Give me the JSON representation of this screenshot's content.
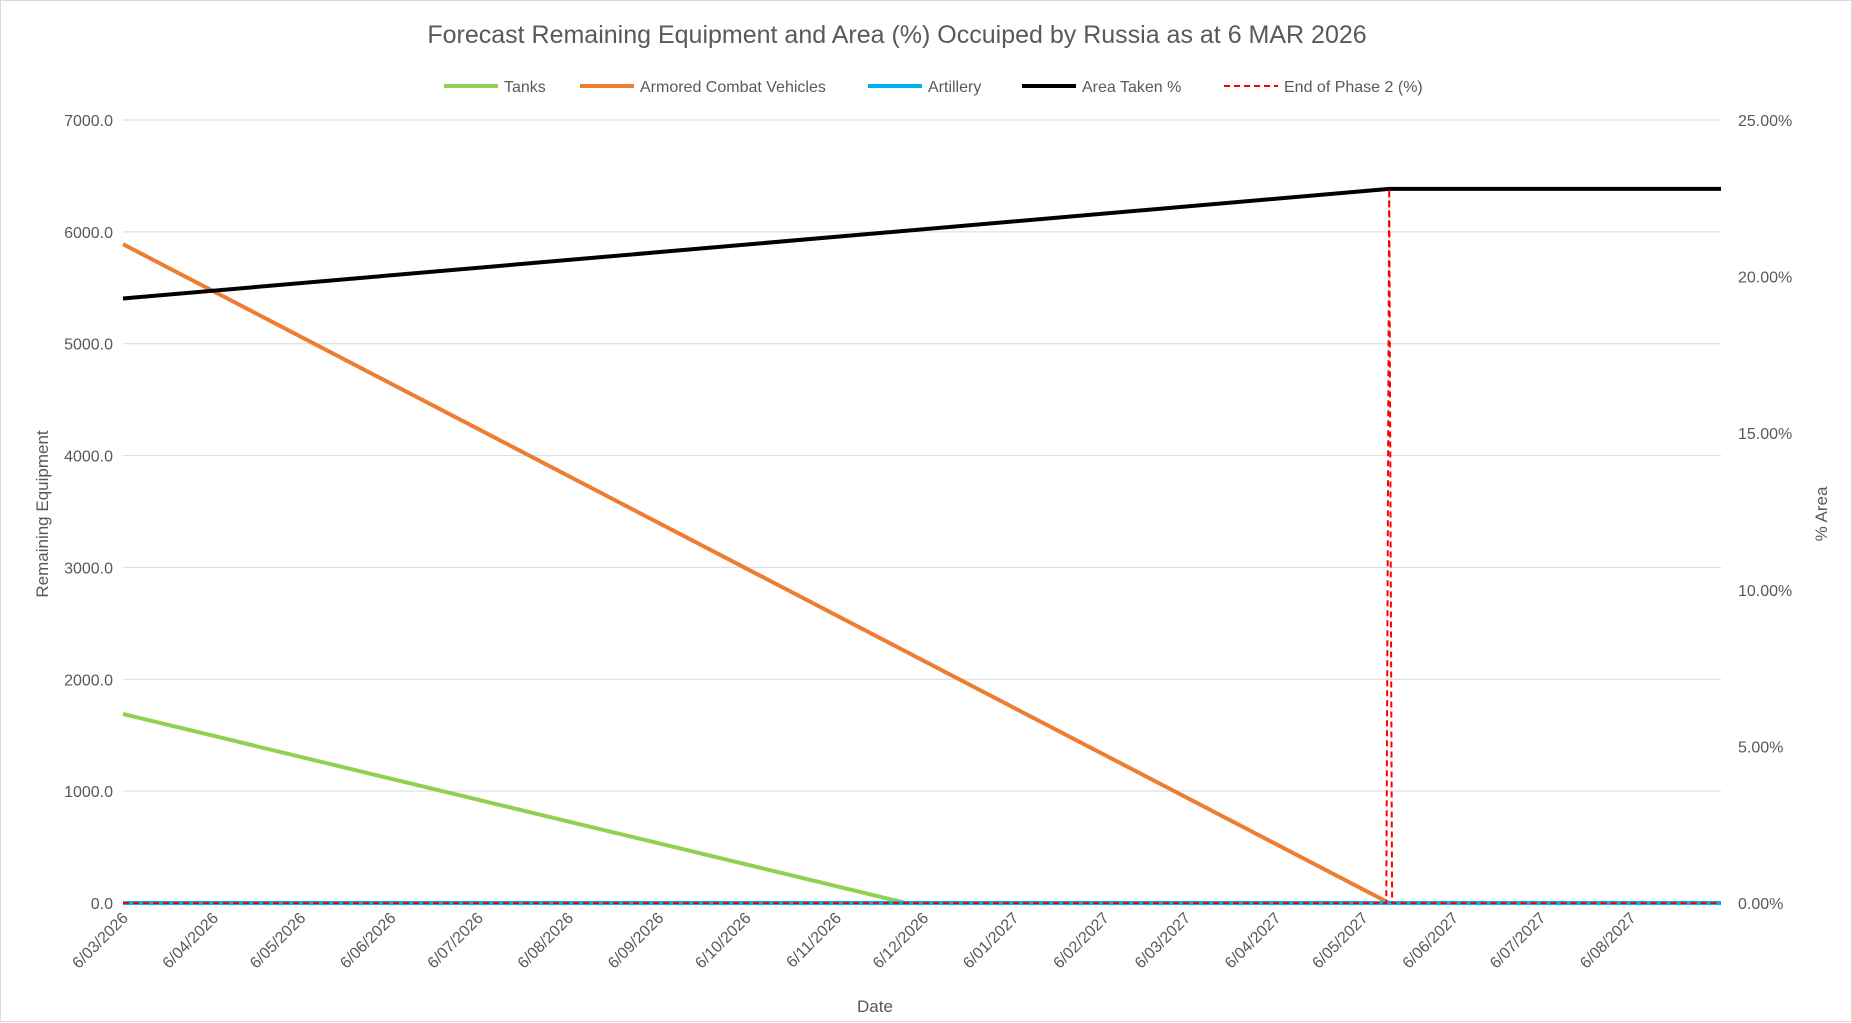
{
  "chart_data": {
    "type": "line",
    "title": "Forecast Remaining Equipment and Area (%) Occuiped by Russia as at 6 MAR 2026",
    "xlabel": "Date",
    "ylabel": "Remaining Equipment",
    "y2label": "% Area",
    "ylim": [
      0,
      7000
    ],
    "y2lim": [
      0,
      0.25
    ],
    "xlim": [
      "2026-03-06",
      "2027-09-06"
    ],
    "grid": true,
    "legend_position": "top",
    "x_tick_labels": [
      "6/03/2026",
      "6/04/2026",
      "6/05/2026",
      "6/06/2026",
      "6/07/2026",
      "6/08/2026",
      "6/09/2026",
      "6/10/2026",
      "6/11/2026",
      "6/12/2026",
      "6/01/2027",
      "6/02/2027",
      "6/03/2027",
      "6/04/2027",
      "6/05/2027",
      "6/06/2027",
      "6/07/2027",
      "6/08/2027"
    ],
    "x_tick_dates": [
      "2026-03-06",
      "2026-04-06",
      "2026-05-06",
      "2026-06-06",
      "2026-07-06",
      "2026-08-06",
      "2026-09-06",
      "2026-10-06",
      "2026-11-06",
      "2026-12-06",
      "2027-01-06",
      "2027-02-06",
      "2027-03-06",
      "2027-04-06",
      "2027-05-06",
      "2027-06-06",
      "2027-07-06",
      "2027-08-06"
    ],
    "y_tick_labels": [
      "0.0",
      "1000.0",
      "2000.0",
      "3000.0",
      "4000.0",
      "5000.0",
      "6000.0",
      "7000.0"
    ],
    "y_tick_values": [
      0,
      1000,
      2000,
      3000,
      4000,
      5000,
      6000,
      7000
    ],
    "y2_tick_labels": [
      "0.00%",
      "5.00%",
      "10.00%",
      "15.00%",
      "20.00%",
      "25.00%"
    ],
    "y2_tick_values": [
      0,
      0.05,
      0.1,
      0.15,
      0.2,
      0.25
    ],
    "series": [
      {
        "name": "Tanks",
        "axis": "left",
        "color": "#92d050",
        "dash": "solid",
        "points": [
          {
            "x": "2026-03-06",
            "y": 1690
          },
          {
            "x": "2026-11-30",
            "y": 0
          },
          {
            "x": "2027-09-06",
            "y": 0
          }
        ]
      },
      {
        "name": "Armored Combat Vehicles",
        "axis": "left",
        "color": "#ed7d31",
        "dash": "solid",
        "points": [
          {
            "x": "2026-03-06",
            "y": 5890
          },
          {
            "x": "2027-05-15",
            "y": 0
          },
          {
            "x": "2027-09-06",
            "y": 0
          }
        ]
      },
      {
        "name": "Artillery",
        "axis": "left",
        "color": "#00b0f0",
        "dash": "solid",
        "points": [
          {
            "x": "2026-03-06",
            "y": 0
          },
          {
            "x": "2027-09-06",
            "y": 0
          }
        ]
      },
      {
        "name": "Area Taken %",
        "axis": "right",
        "color": "#000000",
        "dash": "solid",
        "points": [
          {
            "x": "2026-03-06",
            "y": 0.193
          },
          {
            "x": "2027-05-15",
            "y": 0.228
          },
          {
            "x": "2027-09-06",
            "y": 0.228
          }
        ]
      },
      {
        "name": "End of Phase 2 (%)",
        "axis": "right",
        "color": "#ff0000",
        "dash": "dashed",
        "points": [
          {
            "x": "2026-03-06",
            "y": 0
          },
          {
            "x": "2027-05-14",
            "y": 0
          },
          {
            "x": "2027-05-15",
            "y": 0.228
          },
          {
            "x": "2027-05-16",
            "y": 0
          },
          {
            "x": "2027-09-06",
            "y": 0
          }
        ]
      }
    ]
  }
}
